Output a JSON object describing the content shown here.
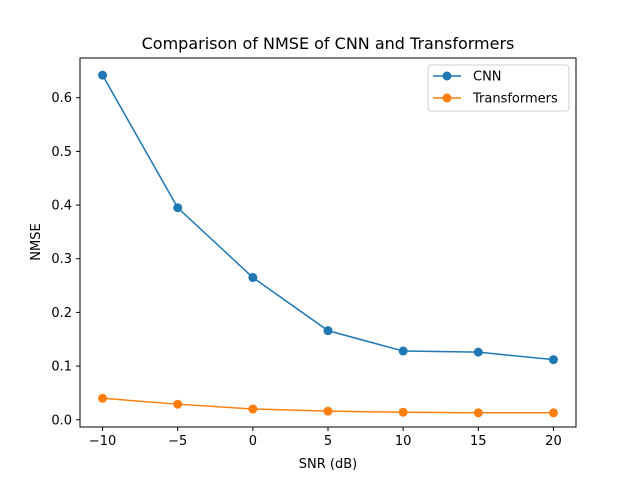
{
  "chart_data": {
    "type": "line",
    "title": "Comparison of NMSE of CNN and Transformers",
    "xlabel": "SNR (dB)",
    "ylabel": "NMSE",
    "x": [
      -10,
      -5,
      0,
      5,
      10,
      15,
      20
    ],
    "xlim": [
      -11.5,
      21.5
    ],
    "ylim": [
      -0.0135,
      0.674
    ],
    "xticks": [
      -10,
      -5,
      0,
      5,
      10,
      15,
      20
    ],
    "xtick_labels": [
      "−10",
      "−5",
      "0",
      "5",
      "10",
      "15",
      "20"
    ],
    "yticks": [
      0.0,
      0.1,
      0.2,
      0.3,
      0.4,
      0.5,
      0.6
    ],
    "ytick_labels": [
      "0.0",
      "0.1",
      "0.2",
      "0.3",
      "0.4",
      "0.5",
      "0.6"
    ],
    "grid": false,
    "legend_position": "top-right",
    "series": [
      {
        "name": "CNN",
        "color": "#1f77b4",
        "marker": "circle",
        "values": [
          0.642,
          0.395,
          0.265,
          0.166,
          0.128,
          0.126,
          0.112
        ]
      },
      {
        "name": "Transformers",
        "color": "#ff7f0e",
        "marker": "circle",
        "values": [
          0.04,
          0.029,
          0.02,
          0.016,
          0.014,
          0.013,
          0.013
        ]
      }
    ]
  }
}
